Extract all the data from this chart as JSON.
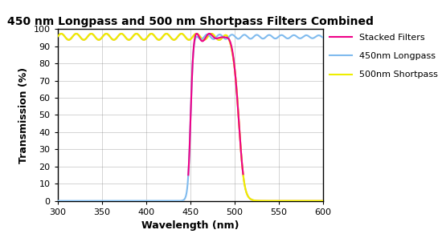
{
  "title": "450 nm Longpass and 500 nm Shortpass Filters Combined",
  "xlabel": "Wavelength (nm)",
  "ylabel": "Transmission (%)",
  "xlim": [
    300,
    600
  ],
  "ylim": [
    0,
    100
  ],
  "yticks": [
    0,
    10,
    20,
    30,
    40,
    50,
    60,
    70,
    80,
    90,
    100
  ],
  "xticks": [
    300,
    350,
    400,
    450,
    500,
    550,
    600
  ],
  "bg_color": "#ffffff",
  "grid_color": "#888888",
  "colors": {
    "longpass": "#80bbee",
    "shortpass": "#eeee00",
    "stacked": "#ee0088",
    "shortpass_drop": "#e8a070"
  },
  "legend": {
    "stacked": "Stacked Filters",
    "longpass": "450nm Longpass",
    "shortpass": "500nm Shortpass"
  },
  "figsize": [
    5.5,
    3.02
  ],
  "dpi": 100
}
